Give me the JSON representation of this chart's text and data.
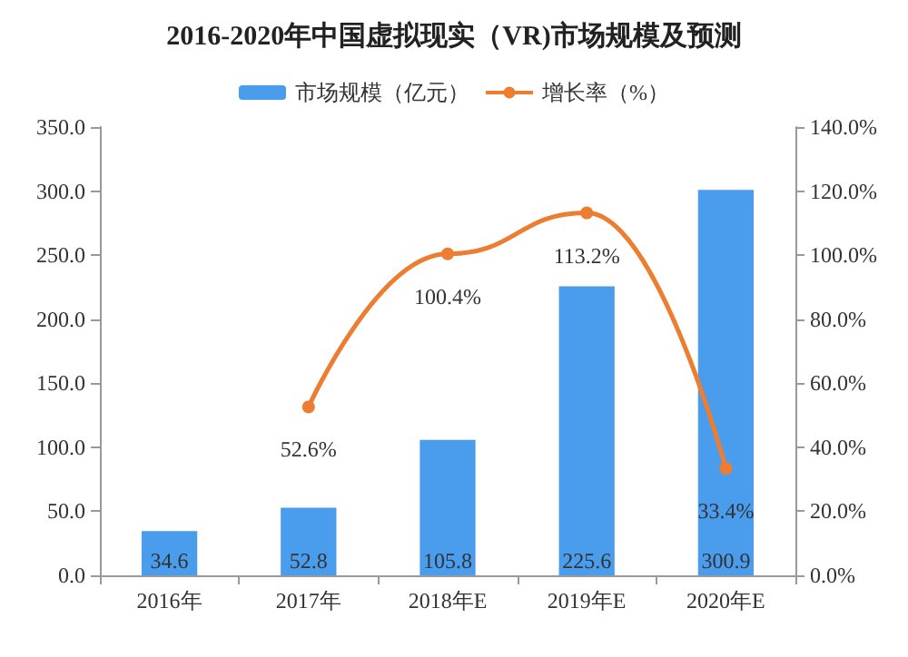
{
  "chart_data": {
    "type": "bar",
    "title": "2016-2020年中国虚拟现实（VR)市场规模及预测",
    "categories": [
      "2016年",
      "2017年",
      "2018年E",
      "2019年E",
      "2020年E"
    ],
    "series": [
      {
        "name": "市场规模（亿元）",
        "color": "#4a9cec",
        "values": [
          34.6,
          52.8,
          105.8,
          225.6,
          300.9
        ],
        "value_labels": [
          "34.6",
          "52.8",
          "105.8",
          "225.6",
          "300.9"
        ]
      },
      {
        "name": "增长率（%）",
        "type": "line",
        "axis": "y2",
        "color": "#ed7d31",
        "values": [
          null,
          52.6,
          100.4,
          113.2,
          33.4
        ],
        "value_labels": [
          null,
          "52.6%",
          "100.4%",
          "113.2%",
          "33.4%"
        ]
      }
    ],
    "ylim": [
      0,
      350
    ],
    "yticks": [
      {
        "value": 0,
        "label": "0.0"
      },
      {
        "value": 50,
        "label": "50.0"
      },
      {
        "value": 100,
        "label": "100.0"
      },
      {
        "value": 150,
        "label": "150.0"
      },
      {
        "value": 200,
        "label": "200.0"
      },
      {
        "value": 250,
        "label": "250.0"
      },
      {
        "value": 300,
        "label": "300.0"
      },
      {
        "value": 350,
        "label": "350.0"
      }
    ],
    "y2lim": [
      0,
      140
    ],
    "y2ticks": [
      {
        "value": 0,
        "label": "0.0%"
      },
      {
        "value": 20,
        "label": "20.0%"
      },
      {
        "value": 40,
        "label": "40.0%"
      },
      {
        "value": 60,
        "label": "60.0%"
      },
      {
        "value": 80,
        "label": "80.0%"
      },
      {
        "value": 100,
        "label": "100.0%"
      },
      {
        "value": 120,
        "label": "120.0%"
      },
      {
        "value": 140,
        "label": "140.0%"
      }
    ],
    "legend": "top",
    "marker": "circle"
  }
}
